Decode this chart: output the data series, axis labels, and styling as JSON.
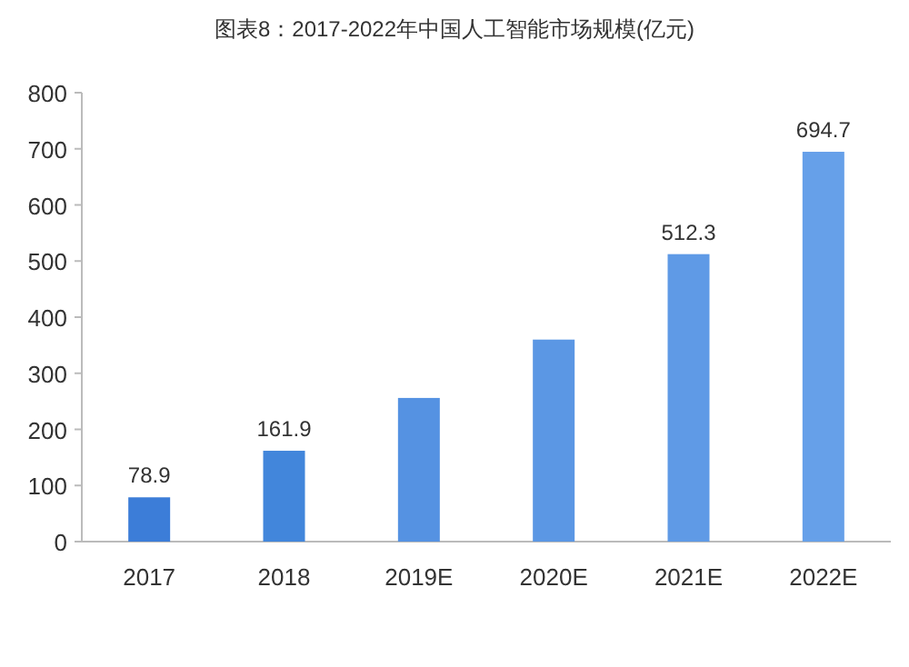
{
  "chart_data": {
    "type": "bar",
    "title": "图表8：2017-2022年中国人工智能市场规模(亿元)",
    "categories": [
      "2017",
      "2018",
      "2019E",
      "2020E",
      "2021E",
      "2022E"
    ],
    "values": [
      78.9,
      161.9,
      256,
      360,
      512.3,
      694.7
    ],
    "value_labels": [
      "78.9",
      "161.9",
      null,
      null,
      "512.3",
      "694.7"
    ],
    "colors": [
      "#3c7dd8",
      "#4286db",
      "#5592e2",
      "#5b97e4",
      "#5f9ae6",
      "#66a0e9"
    ],
    "ylim": [
      0,
      800
    ],
    "yticks": [
      0,
      100,
      200,
      300,
      400,
      500,
      600,
      700,
      800
    ],
    "grid": false
  }
}
